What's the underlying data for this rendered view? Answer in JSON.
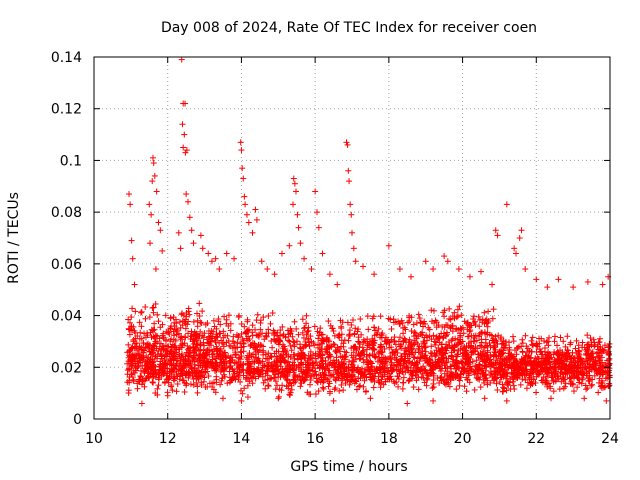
{
  "chart_data": {
    "type": "scatter",
    "title": "Day 008 of 2024, Rate Of TEC Index for receiver coen",
    "xlabel": "GPS time / hours",
    "ylabel": "ROTI / TECUs",
    "xlim": [
      10,
      24
    ],
    "ylim": [
      0,
      0.14
    ],
    "grid": true,
    "marker": "+",
    "color": "#ff0000",
    "x_ticks": [
      10,
      12,
      14,
      16,
      18,
      20,
      22,
      24
    ],
    "x_tick_labels": [
      "10",
      "12",
      "14",
      "16",
      "18",
      "20",
      "22",
      "24"
    ],
    "y_ticks": [
      0,
      0.02,
      0.04,
      0.06,
      0.08,
      0.1,
      0.12,
      0.14
    ],
    "y_tick_labels": [
      "0",
      "0.02",
      "0.04",
      "0.06",
      "0.08",
      "0.1",
      "0.12",
      "0.14"
    ],
    "series": [
      {
        "name": "ROTI",
        "points": [
          [
            10.95,
            0.087
          ],
          [
            10.98,
            0.083
          ],
          [
            11.02,
            0.069
          ],
          [
            11.05,
            0.062
          ],
          [
            11.1,
            0.052
          ],
          [
            11.5,
            0.083
          ],
          [
            11.55,
            0.079
          ],
          [
            11.6,
            0.101
          ],
          [
            11.62,
            0.099
          ],
          [
            11.65,
            0.094
          ],
          [
            11.58,
            0.092
          ],
          [
            11.7,
            0.088
          ],
          [
            11.75,
            0.076
          ],
          [
            11.8,
            0.073
          ],
          [
            11.85,
            0.065
          ],
          [
            11.52,
            0.068
          ],
          [
            11.68,
            0.058
          ],
          [
            12.3,
            0.072
          ],
          [
            12.35,
            0.066
          ],
          [
            12.38,
            0.139
          ],
          [
            12.42,
            0.122
          ],
          [
            12.47,
            0.122
          ],
          [
            12.4,
            0.114
          ],
          [
            12.45,
            0.11
          ],
          [
            12.42,
            0.105
          ],
          [
            12.48,
            0.103
          ],
          [
            12.52,
            0.104
          ],
          [
            12.5,
            0.087
          ],
          [
            12.55,
            0.084
          ],
          [
            12.6,
            0.078
          ],
          [
            12.65,
            0.073
          ],
          [
            12.7,
            0.068
          ],
          [
            12.9,
            0.071
          ],
          [
            12.95,
            0.066
          ],
          [
            13.1,
            0.064
          ],
          [
            13.2,
            0.061
          ],
          [
            13.3,
            0.062
          ],
          [
            13.4,
            0.058
          ],
          [
            13.6,
            0.064
          ],
          [
            13.8,
            0.062
          ],
          [
            13.98,
            0.107
          ],
          [
            14.0,
            0.104
          ],
          [
            14.02,
            0.097
          ],
          [
            14.05,
            0.093
          ],
          [
            14.08,
            0.086
          ],
          [
            14.1,
            0.083
          ],
          [
            14.15,
            0.079
          ],
          [
            14.2,
            0.076
          ],
          [
            14.3,
            0.072
          ],
          [
            14.38,
            0.081
          ],
          [
            14.42,
            0.077
          ],
          [
            14.55,
            0.061
          ],
          [
            14.7,
            0.058
          ],
          [
            14.9,
            0.056
          ],
          [
            15.1,
            0.064
          ],
          [
            15.3,
            0.067
          ],
          [
            15.42,
            0.093
          ],
          [
            15.45,
            0.091
          ],
          [
            15.48,
            0.088
          ],
          [
            15.4,
            0.083
          ],
          [
            15.52,
            0.079
          ],
          [
            15.55,
            0.074
          ],
          [
            15.6,
            0.068
          ],
          [
            15.7,
            0.062
          ],
          [
            15.9,
            0.058
          ],
          [
            16.0,
            0.088
          ],
          [
            16.05,
            0.08
          ],
          [
            16.1,
            0.074
          ],
          [
            16.2,
            0.064
          ],
          [
            16.4,
            0.056
          ],
          [
            16.6,
            0.052
          ],
          [
            16.85,
            0.107
          ],
          [
            16.88,
            0.106
          ],
          [
            16.9,
            0.096
          ],
          [
            16.92,
            0.092
          ],
          [
            16.95,
            0.083
          ],
          [
            16.98,
            0.079
          ],
          [
            17.0,
            0.072
          ],
          [
            17.05,
            0.066
          ],
          [
            17.1,
            0.061
          ],
          [
            17.3,
            0.059
          ],
          [
            17.6,
            0.056
          ],
          [
            18.0,
            0.067
          ],
          [
            18.3,
            0.058
          ],
          [
            18.6,
            0.055
          ],
          [
            19.0,
            0.061
          ],
          [
            19.2,
            0.058
          ],
          [
            19.5,
            0.063
          ],
          [
            19.6,
            0.061
          ],
          [
            19.9,
            0.058
          ],
          [
            20.2,
            0.055
          ],
          [
            20.5,
            0.057
          ],
          [
            20.8,
            0.052
          ],
          [
            20.9,
            0.073
          ],
          [
            20.95,
            0.071
          ],
          [
            21.2,
            0.083
          ],
          [
            21.4,
            0.066
          ],
          [
            21.45,
            0.064
          ],
          [
            21.6,
            0.073
          ],
          [
            21.55,
            0.07
          ],
          [
            21.7,
            0.058
          ],
          [
            22.0,
            0.054
          ],
          [
            22.3,
            0.051
          ],
          [
            22.6,
            0.054
          ],
          [
            23.0,
            0.051
          ],
          [
            23.4,
            0.053
          ],
          [
            23.8,
            0.052
          ],
          [
            23.95,
            0.055
          ],
          [
            11.3,
            0.006
          ],
          [
            12.0,
            0.009
          ],
          [
            13.5,
            0.008
          ],
          [
            14.0,
            0.007
          ],
          [
            15.0,
            0.008
          ],
          [
            16.5,
            0.007
          ],
          [
            17.5,
            0.008
          ],
          [
            18.5,
            0.006
          ],
          [
            19.2,
            0.007
          ],
          [
            20.6,
            0.008
          ],
          [
            21.2,
            0.007
          ],
          [
            22.4,
            0.008
          ],
          [
            23.3,
            0.008
          ],
          [
            23.9,
            0.007
          ]
        ]
      }
    ],
    "density_bands": [
      {
        "x_range": [
          10.9,
          13.2
        ],
        "y_range": [
          0.008,
          0.045
        ],
        "count": 520
      },
      {
        "x_range": [
          13.2,
          18.5
        ],
        "y_range": [
          0.008,
          0.042
        ],
        "count": 900
      },
      {
        "x_range": [
          18.5,
          21.0
        ],
        "y_range": [
          0.01,
          0.045
        ],
        "count": 500
      },
      {
        "x_range": [
          21.0,
          24.0
        ],
        "y_range": [
          0.01,
          0.033
        ],
        "count": 560
      },
      {
        "x_range": [
          10.9,
          24.0
        ],
        "y_range": [
          0.012,
          0.026
        ],
        "count": 900
      }
    ]
  }
}
